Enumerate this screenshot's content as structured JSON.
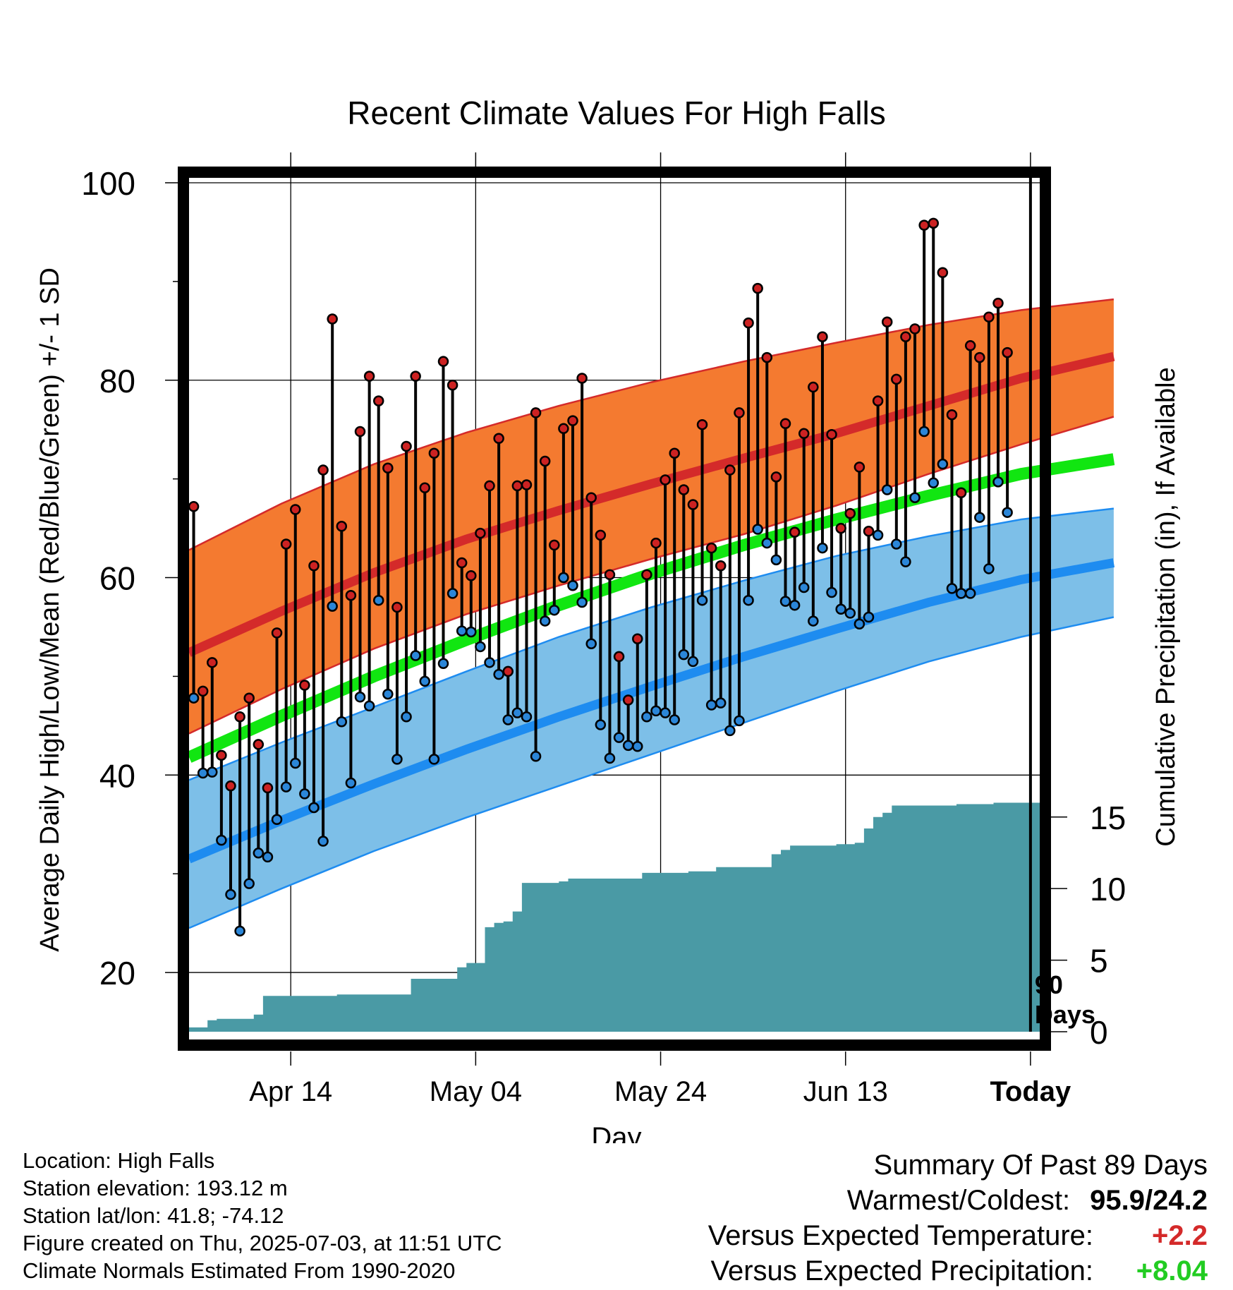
{
  "chart_data": {
    "type": "line",
    "title": "Recent Climate Values For High Falls",
    "xlabel": "Day",
    "ylabel": "Average Daily High/Low/Mean (Red/Blue/Green) +/- 1 SD",
    "y2label": "Cumulative Precipitation (in), If Available",
    "x_range": [
      "2025-04-03",
      "2025-07-04"
    ],
    "ylim": [
      14,
      101
    ],
    "y2lim": [
      0,
      60
    ],
    "yticks": [
      20,
      40,
      60,
      80,
      100
    ],
    "y2ticks": [
      0,
      5,
      10,
      15
    ],
    "xticks": [
      {
        "date": "2025-04-14",
        "label": "Apr 14"
      },
      {
        "date": "2025-05-04",
        "label": "May 04"
      },
      {
        "date": "2025-05-24",
        "label": "May 24"
      },
      {
        "date": "2025-06-13",
        "label": "Jun 13"
      },
      {
        "date": "2025-07-03",
        "label": "Today"
      }
    ],
    "today_marker": {
      "date": "2025-07-03",
      "label_line1": "90",
      "label_line2": "Days"
    },
    "grid": true,
    "start_date": "2025-04-03",
    "daily_high": [
      67.2,
      48.5,
      51.4,
      42.0,
      38.9,
      45.9,
      47.8,
      43.1,
      38.7,
      54.4,
      63.4,
      66.9,
      49.1,
      61.2,
      70.9,
      86.2,
      65.2,
      58.2,
      74.8,
      80.4,
      77.9,
      71.1,
      57.0,
      73.3,
      80.4,
      69.1,
      72.6,
      81.9,
      79.5,
      61.5,
      60.2,
      64.5,
      69.3,
      74.1,
      50.5,
      69.3,
      69.4,
      76.7,
      71.8,
      63.3,
      75.1,
      75.9,
      80.2,
      68.1,
      64.3,
      60.3,
      52.0,
      47.6,
      53.8,
      60.3,
      63.5,
      69.9,
      72.6,
      68.9,
      67.4,
      75.5,
      63.0,
      61.2,
      70.9,
      76.7,
      85.8,
      89.3,
      82.3,
      70.2,
      75.6,
      64.6,
      74.6,
      79.3,
      84.4,
      74.5,
      65.0,
      66.5,
      71.2,
      64.7,
      77.9,
      85.9,
      80.1,
      84.4,
      85.2,
      95.7,
      95.9,
      90.9,
      76.5,
      68.6,
      83.5,
      82.3,
      86.4,
      87.8,
      82.8
    ],
    "daily_low": [
      47.8,
      40.2,
      40.3,
      33.4,
      27.9,
      24.2,
      29.0,
      32.1,
      31.7,
      35.5,
      38.8,
      41.2,
      38.1,
      36.7,
      33.3,
      57.1,
      45.4,
      39.2,
      47.9,
      47.0,
      57.7,
      48.2,
      41.6,
      45.9,
      52.1,
      49.5,
      41.6,
      51.3,
      58.4,
      54.6,
      54.5,
      53.0,
      51.4,
      50.2,
      45.6,
      46.3,
      45.9,
      41.9,
      55.6,
      56.7,
      60.0,
      59.2,
      57.5,
      53.3,
      45.1,
      41.7,
      43.8,
      43.0,
      42.9,
      45.9,
      46.5,
      46.3,
      45.6,
      52.2,
      51.5,
      57.7,
      47.1,
      47.3,
      44.5,
      45.5,
      57.7,
      64.9,
      63.5,
      61.8,
      57.6,
      57.2,
      59.0,
      55.6,
      63.0,
      58.5,
      56.8,
      56.4,
      55.3,
      56.0,
      64.3,
      68.9,
      63.4,
      61.6,
      68.1,
      74.8,
      69.6,
      71.5,
      58.9,
      58.4,
      58.4,
      66.1,
      60.9,
      69.7,
      66.6
    ],
    "normals": {
      "dates": [
        "2025-04-03",
        "2025-04-13",
        "2025-04-23",
        "2025-05-03",
        "2025-05-13",
        "2025-05-23",
        "2025-06-02",
        "2025-06-12",
        "2025-06-22",
        "2025-07-02",
        "2025-07-12"
      ],
      "high_upper": [
        62.8,
        67.5,
        71.5,
        74.7,
        77.4,
        79.8,
        81.9,
        83.8,
        85.6,
        87.1,
        88.2
      ],
      "high_mean": [
        52.4,
        56.6,
        60.5,
        63.9,
        66.8,
        69.5,
        72.1,
        74.6,
        77.4,
        80.2,
        82.4
      ],
      "high_lower": [
        44.2,
        48.7,
        52.8,
        56.3,
        59.2,
        61.9,
        64.4,
        67.3,
        70.5,
        73.5,
        76.3
      ],
      "mean": [
        41.8,
        46.0,
        50.0,
        53.7,
        57.2,
        60.4,
        63.3,
        65.9,
        68.3,
        70.5,
        72.0
      ],
      "low_upper": [
        39.5,
        43.3,
        46.9,
        50.5,
        54.0,
        57.0,
        59.7,
        62.2,
        64.2,
        65.9,
        67.0
      ],
      "low_mean": [
        31.5,
        35.4,
        39.1,
        42.6,
        45.9,
        49.0,
        52.0,
        54.8,
        57.5,
        59.8,
        61.5
      ],
      "low_lower": [
        24.5,
        28.5,
        32.3,
        35.7,
        38.9,
        42.1,
        45.3,
        48.5,
        51.5,
        54.0,
        56.0
      ]
    },
    "cum_precip": {
      "dates": [
        "2025-04-03",
        "2025-04-05",
        "2025-04-06",
        "2025-04-08",
        "2025-04-10",
        "2025-04-11",
        "2025-04-12",
        "2025-04-19",
        "2025-04-20",
        "2025-04-26",
        "2025-04-27",
        "2025-05-01",
        "2025-05-02",
        "2025-05-03",
        "2025-05-05",
        "2025-05-06",
        "2025-05-07",
        "2025-05-08",
        "2025-05-09",
        "2025-05-13",
        "2025-05-14",
        "2025-05-21",
        "2025-05-22",
        "2025-05-27",
        "2025-05-29",
        "2025-05-30",
        "2025-06-02",
        "2025-06-05",
        "2025-06-06",
        "2025-06-07",
        "2025-06-09",
        "2025-06-12",
        "2025-06-14",
        "2025-06-15",
        "2025-06-16",
        "2025-06-17",
        "2025-06-18",
        "2025-06-21",
        "2025-06-25",
        "2025-06-29",
        "2025-06-30",
        "2025-07-04"
      ],
      "values": [
        0.3,
        0.8,
        0.9,
        0.9,
        1.2,
        2.5,
        2.5,
        2.6,
        2.6,
        2.6,
        3.7,
        3.7,
        4.5,
        4.8,
        7.3,
        7.6,
        7.7,
        8.4,
        10.4,
        10.5,
        10.7,
        10.7,
        11.1,
        11.2,
        11.2,
        11.5,
        11.5,
        12.4,
        12.7,
        13.0,
        13.0,
        13.1,
        13.2,
        14.2,
        15.0,
        15.3,
        15.8,
        15.8,
        15.9,
        16.0,
        16.0,
        16.3
      ],
      "color": "#4a9aa5"
    },
    "colors": {
      "high_band": "#f47a30",
      "high_line": "#d42a2a",
      "low_band": "#7dbfe8",
      "low_line": "#1e8cf0",
      "mean_line": "#11e611",
      "high_dot": "#cc2222",
      "low_dot": "#2b86d8"
    }
  },
  "footer": {
    "location": "Location: High Falls",
    "elevation": "Station elevation: 193.12 m",
    "latlon": "Station lat/lon: 41.8; -74.12",
    "created": "Figure created on Thu, 2025-07-03, at 11:51 UTC",
    "normals": "Climate Normals Estimated From 1990-2020"
  },
  "summary": {
    "title": "Summary Of Past 89 Days",
    "warmest_label": "Warmest/Coldest:",
    "warmest_value": "95.9/24.2",
    "temp_label": "Versus Expected Temperature:",
    "temp_value": "+2.2",
    "temp_color": "#d42a2a",
    "precip_label": "Versus Expected Precipitation:",
    "precip_value": "+8.04",
    "precip_color": "#22cc22"
  }
}
